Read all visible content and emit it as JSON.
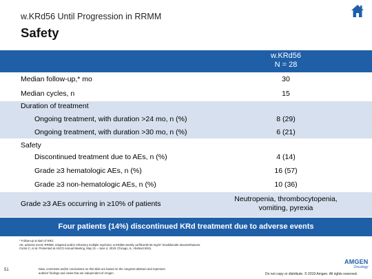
{
  "header": {
    "subtitle": "w.KRd56 Until Progression in RRMM",
    "title": "Safety",
    "home_icon": "home-icon"
  },
  "table": {
    "column_header_line1": "w.KRd56",
    "column_header_line2": "N = 28",
    "rows": [
      {
        "label": "Median follow-up,* mo",
        "value": "30"
      },
      {
        "label": "Median cycles, n",
        "value": "15"
      },
      {
        "label": "Duration of treatment",
        "value": ""
      },
      {
        "label": "Ongoing treatment, with duration >24 mo, n (%)",
        "value": "8 (29)"
      },
      {
        "label": "Ongoing treatment, with duration >30 mo, n (%)",
        "value": "6 (21)"
      },
      {
        "label": "Safety",
        "value": ""
      },
      {
        "label": "Discontinued treatment due to AEs, n (%)",
        "value": "4 (14)"
      },
      {
        "label": "Grade ≥3 hematologic AEs, n (%)",
        "value": "16 (57)"
      },
      {
        "label": "Grade ≥3 non-hematologic AEs, n (%)",
        "value": "10 (36)"
      },
      {
        "label": "Grade ≥3 AEs occurring in ≥10% of patients",
        "value_line1": "Neutropenia, thrombocytopenia,",
        "value_line2": "vomiting, pyrexia"
      }
    ]
  },
  "banner": "Four patients (14%) discontinued KRd treatment due to adverse events",
  "footnotes": {
    "line1": "* Follow-up at start of KRd.",
    "line2": "AE, adverse event; RRMM, relapsed and/or refractory multiple myeloma; w.KRd56 weekly carfilzomib 56 mg/m² lenalidomide dexamethasone.",
    "line3": "Cocks C, et al. Presented at ASCO Annual Meeting, May 31 – June 4, 2019; Chicago, IL. Abstract 8041."
  },
  "page_number": "51",
  "disclaimer": {
    "line1": "Data, comments and/or conclusions on this slide are based on the congress abstract and represent",
    "line2": "authors' findings and views that are independent of Amgen."
  },
  "copyright": "Do not copy or distribute. © 2019 Amgen. All rights reserved.",
  "logo": {
    "brand": "AMGEN",
    "sub": "Oncology"
  },
  "colors": {
    "accent": "#1f5fa8",
    "row_shade": "#d6e0ee"
  }
}
